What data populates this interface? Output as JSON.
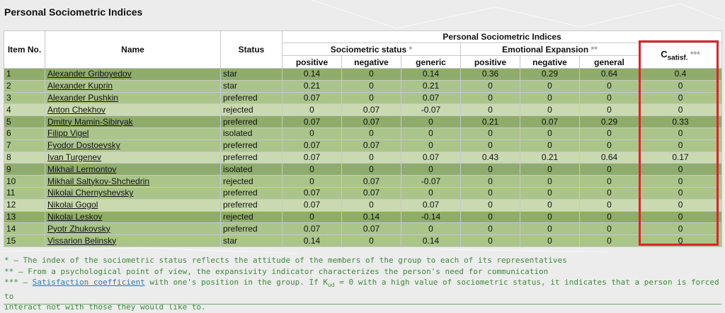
{
  "page": {
    "title": "Personal Sociometric Indices"
  },
  "table": {
    "headers": {
      "item_no": "Item No.",
      "name": "Name",
      "status": "Status",
      "group": "Personal Sociometric Indices",
      "sociometric": "Sociometric status",
      "sociometric_mark": "*",
      "emotional": "Emotional Expansion",
      "emotional_mark": "**",
      "csat_main": "C",
      "csat_sub": "satisf.",
      "csat_mark": "***",
      "sub": {
        "positive": "positive",
        "negative": "negative",
        "generic": "generic",
        "e_positive": "positive",
        "e_negative": "negative",
        "general": "general"
      }
    },
    "rows": [
      {
        "no": "1",
        "name": "Alexander Griboyedov",
        "status": "star",
        "sp": "0.14",
        "sn": "0",
        "sg": "0.14",
        "ep": "0.36",
        "en": "0.29",
        "eg": "0.64",
        "cs": "0.4"
      },
      {
        "no": "2",
        "name": "Alexander Kuprin",
        "status": "star",
        "sp": "0.21",
        "sn": "0",
        "sg": "0.21",
        "ep": "0",
        "en": "0",
        "eg": "0",
        "cs": "0"
      },
      {
        "no": "3",
        "name": "Alexander Pushkin",
        "status": "preferred",
        "sp": "0.07",
        "sn": "0",
        "sg": "0.07",
        "ep": "0",
        "en": "0",
        "eg": "0",
        "cs": "0"
      },
      {
        "no": "4",
        "name": "Anton Chekhov",
        "status": "rejected",
        "sp": "0",
        "sn": "0.07",
        "sg": "-0.07",
        "ep": "0",
        "en": "0",
        "eg": "0",
        "cs": "0"
      },
      {
        "no": "5",
        "name": "Dmitry Mamin-Sibiryak",
        "status": "preferred",
        "sp": "0.07",
        "sn": "0.07",
        "sg": "0",
        "ep": "0.21",
        "en": "0.07",
        "eg": "0.29",
        "cs": "0.33"
      },
      {
        "no": "6",
        "name": "Filipp Vigel",
        "status": "isolated",
        "sp": "0",
        "sn": "0",
        "sg": "0",
        "ep": "0",
        "en": "0",
        "eg": "0",
        "cs": "0"
      },
      {
        "no": "7",
        "name": "Fyodor Dostoevsky",
        "status": "preferred",
        "sp": "0.07",
        "sn": "0.07",
        "sg": "0",
        "ep": "0",
        "en": "0",
        "eg": "0",
        "cs": "0"
      },
      {
        "no": "8",
        "name": "Ivan Turgenev",
        "status": "preferred",
        "sp": "0.07",
        "sn": "0",
        "sg": "0.07",
        "ep": "0.43",
        "en": "0.21",
        "eg": "0.64",
        "cs": "0.17"
      },
      {
        "no": "9",
        "name": "Mikhail Lermontov",
        "status": "isolated",
        "sp": "0",
        "sn": "0",
        "sg": "0",
        "ep": "0",
        "en": "0",
        "eg": "0",
        "cs": "0"
      },
      {
        "no": "10",
        "name": "Mikhail Saltykov-Shchedrin",
        "status": "rejected",
        "sp": "0",
        "sn": "0.07",
        "sg": "-0.07",
        "ep": "0",
        "en": "0",
        "eg": "0",
        "cs": "0"
      },
      {
        "no": "11",
        "name": "Nikolai Chernyshevsky",
        "status": "preferred",
        "sp": "0.07",
        "sn": "0.07",
        "sg": "0",
        "ep": "0",
        "en": "0",
        "eg": "0",
        "cs": "0"
      },
      {
        "no": "12",
        "name": "Nikolai Gogol",
        "status": "preferred",
        "sp": "0.07",
        "sn": "0",
        "sg": "0.07",
        "ep": "0",
        "en": "0",
        "eg": "0",
        "cs": "0"
      },
      {
        "no": "13",
        "name": "Nikolai Leskov",
        "status": "rejected",
        "sp": "0",
        "sn": "0.14",
        "sg": "-0.14",
        "ep": "0",
        "en": "0",
        "eg": "0",
        "cs": "0"
      },
      {
        "no": "14",
        "name": "Pyotr Zhukovsky",
        "status": "preferred",
        "sp": "0.07",
        "sn": "0.07",
        "sg": "0",
        "ep": "0",
        "en": "0",
        "eg": "0",
        "cs": "0"
      },
      {
        "no": "15",
        "name": "Vissarion Belinsky",
        "status": "star",
        "sp": "0.14",
        "sn": "0",
        "sg": "0.14",
        "ep": "0",
        "en": "0",
        "eg": "0",
        "cs": "0"
      }
    ]
  },
  "notes": {
    "n1": "* – The index of the sociometric status reflects the attitude of the members of the group to each of its representatives",
    "n2": "** – From a psychological point of view, the expansivity indicator characterizes the person's need for communication",
    "n3_prefix": "*** – ",
    "n3_link": "Satisfaction coefficient",
    "n3_mid": " with one's position in the group. If K",
    "n3_sub": "ud",
    "n3_rest": " = 0 with a high value of sociometric status, it indicates that a person is forced to",
    "n3_line2": "interact not with those they would like to."
  },
  "colors": {
    "row_dark": "#8fac6c",
    "row_mid": "#aac48a",
    "row_light": "#c9dab0",
    "highlight": "#d8262a",
    "note_text": "#3e8a3c",
    "link": "#2f79b0"
  }
}
